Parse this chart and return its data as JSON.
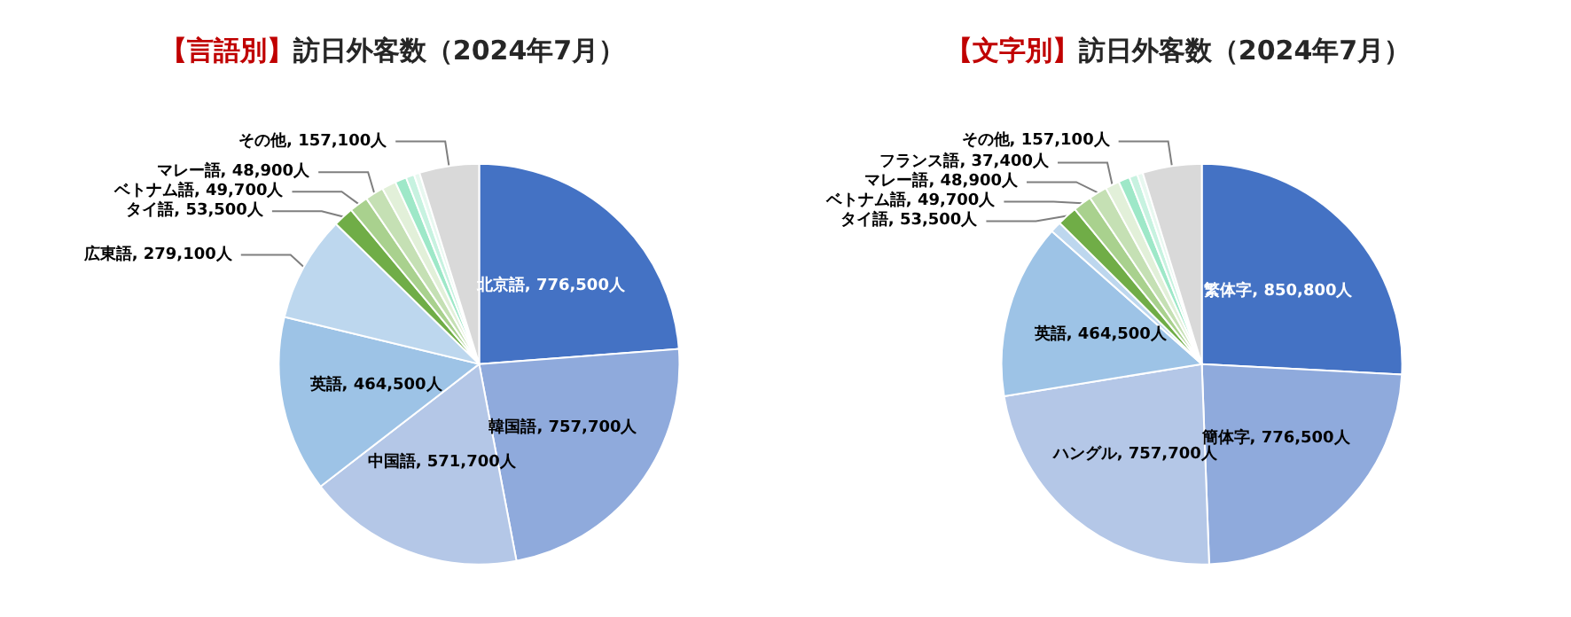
{
  "chart_data": [
    {
      "type": "pie",
      "title": "【言語別】訪日外客数（2024年7月）",
      "categories": [
        "北京語",
        "韓国語",
        "中国語",
        "英語",
        "広東語",
        "タイ語",
        "ベトナム語",
        "マレー語",
        null,
        null,
        null,
        null,
        "その他"
      ],
      "values": [
        776500,
        757700,
        571700,
        464500,
        279100,
        53500,
        49700,
        48900,
        37400,
        30000,
        22000,
        15000,
        157100
      ],
      "value_labels": [
        "776,500人",
        "757,700人",
        "571,700人",
        "464,500人",
        "279,100人",
        "53,500人",
        "49,700人",
        "48,900人",
        null,
        null,
        null,
        null,
        "157,100人"
      ],
      "colors": [
        "#4472c4",
        "#8faadc",
        "#b4c7e7",
        "#9dc3e6",
        "#bdd7ee",
        "#70ad47",
        "#a9d18e",
        "#c5e0b4",
        "#e2f0d9",
        "#9ee8c8",
        "#c7f2e0",
        "#e8f8f0",
        "#d9d9d9"
      ],
      "legend": false
    },
    {
      "type": "pie",
      "title": "【文字別】訪日外客数（2024年7月）",
      "categories": [
        "繁体字",
        "簡体字",
        "ハングル",
        "英語",
        null,
        "タイ語",
        "ベトナム語",
        "マレー語",
        "フランス語",
        null,
        null,
        null,
        "その他"
      ],
      "values": [
        850800,
        776500,
        757700,
        464500,
        30000,
        53500,
        49700,
        48900,
        37400,
        30000,
        22000,
        15000,
        157100
      ],
      "value_labels": [
        "850,800人",
        "776,500人",
        "757,700人",
        "464,500人",
        null,
        "53,500人",
        "49,700人",
        "48,900人",
        "37,400人",
        null,
        null,
        null,
        "157,100人"
      ],
      "colors": [
        "#4472c4",
        "#8faadc",
        "#b4c7e7",
        "#9dc3e6",
        "#bdd7ee",
        "#70ad47",
        "#a9d18e",
        "#c5e0b4",
        "#e2f0d9",
        "#9ee8c8",
        "#c7f2e0",
        "#e8f8f0",
        "#d9d9d9"
      ],
      "legend": false
    }
  ]
}
